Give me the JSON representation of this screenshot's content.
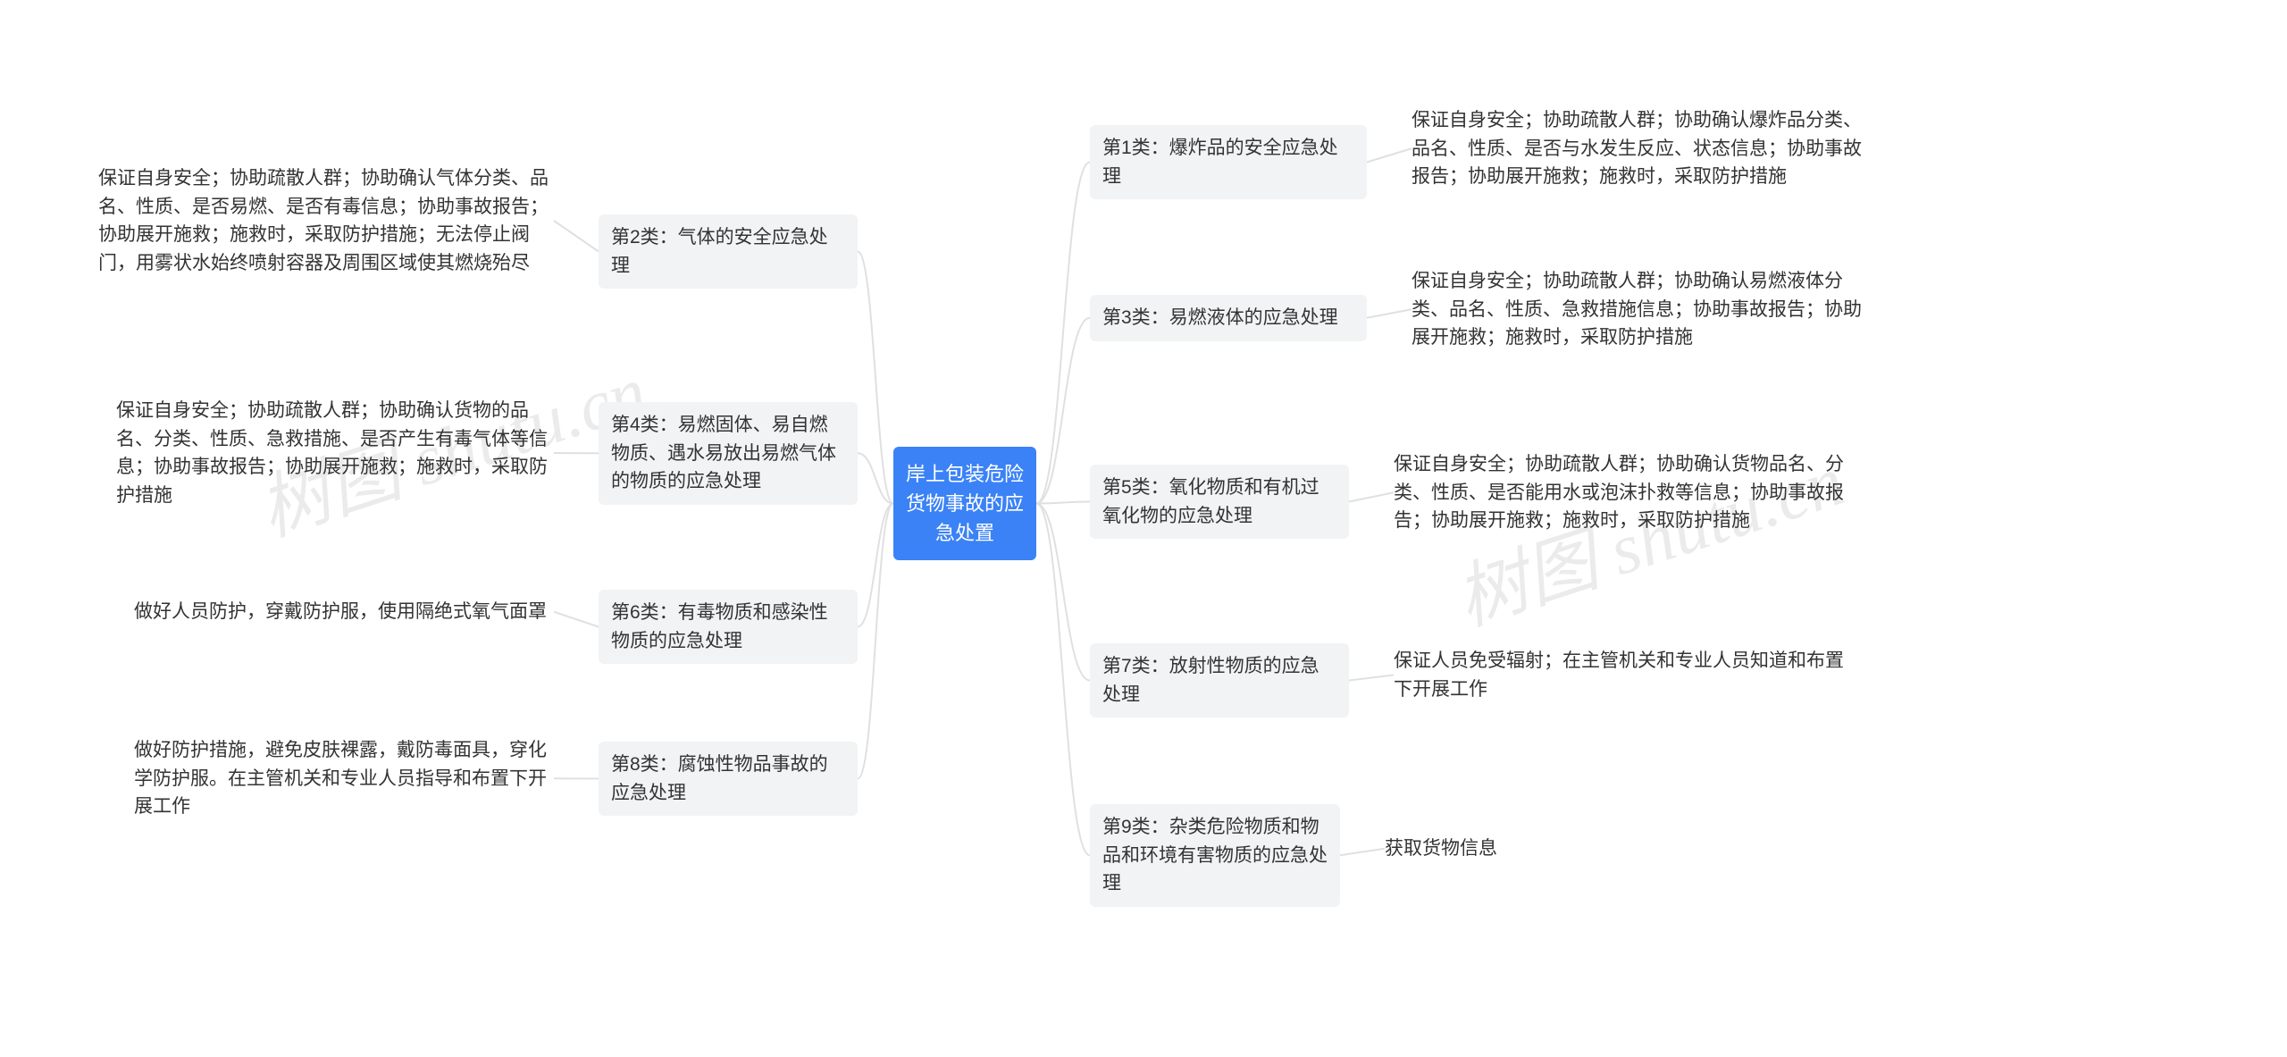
{
  "type": "mindmap",
  "background_color": "#ffffff",
  "root_color": "#3b82f6",
  "root_text_color": "#ffffff",
  "branch_color": "#f1f3f5",
  "branch_text_color": "#333333",
  "leaf_text_color": "#333333",
  "connector_color": "#e0e0e0",
  "font_family": "PingFang SC, Microsoft YaHei, sans-serif",
  "base_fontsize": 21,
  "watermark": {
    "text": "树图 shutu.cn",
    "color": "rgba(0,0,0,0.08)",
    "rotation_deg": -18
  },
  "root": {
    "label": "岸上包装危险货物事故的应急处置"
  },
  "left": [
    {
      "label": "第2类：气体的安全应急处理",
      "detail": "保证自身安全；协助疏散人群；协助确认气体分类、品名、性质、是否易燃、是否有毒信息；协助事故报告；协助展开施救；施救时，采取防护措施；无法停止阀门，用雾状水始终喷射容器及周围区域使其燃烧殆尽"
    },
    {
      "label": "第4类：易燃固体、易自燃物质、遇水易放出易燃气体的物质的应急处理",
      "detail": "保证自身安全；协助疏散人群；协助确认货物的品名、分类、性质、急救措施、是否产生有毒气体等信息；协助事故报告；协助展开施救；施救时，采取防护措施"
    },
    {
      "label": "第6类：有毒物质和感染性物质的应急处理",
      "detail": "做好人员防护，穿戴防护服，使用隔绝式氧气面罩"
    },
    {
      "label": "第8类：腐蚀性物品事故的应急处理",
      "detail": "做好防护措施，避免皮肤裸露，戴防毒面具，穿化学防护服。在主管机关和专业人员指导和布置下开展工作"
    }
  ],
  "right": [
    {
      "label": "第1类：爆炸品的安全应急处理",
      "detail": "保证自身安全；协助疏散人群；协助确认爆炸品分类、品名、性质、是否与水发生反应、状态信息；协助事故报告；协助展开施救；施救时，采取防护措施"
    },
    {
      "label": "第3类：易燃液体的应急处理",
      "detail": "保证自身安全；协助疏散人群；协助确认易燃液体分类、品名、性质、急救措施信息；协助事故报告；协助展开施救；施救时，采取防护措施"
    },
    {
      "label": "第5类：氧化物质和有机过氧化物的应急处理",
      "detail": "保证自身安全；协助疏散人群；协助确认货物品名、分类、性质、是否能用水或泡沫扑救等信息；协助事故报告；协助展开施救；施救时，采取防护措施"
    },
    {
      "label": "第7类：放射性物质的应急处理",
      "detail": "保证人员免受辐射；在主管机关和专业人员知道和布置下开展工作"
    },
    {
      "label": "第9类：杂类危险物质和物品和环境有害物质的应急处理",
      "detail": "获取货物信息"
    }
  ]
}
